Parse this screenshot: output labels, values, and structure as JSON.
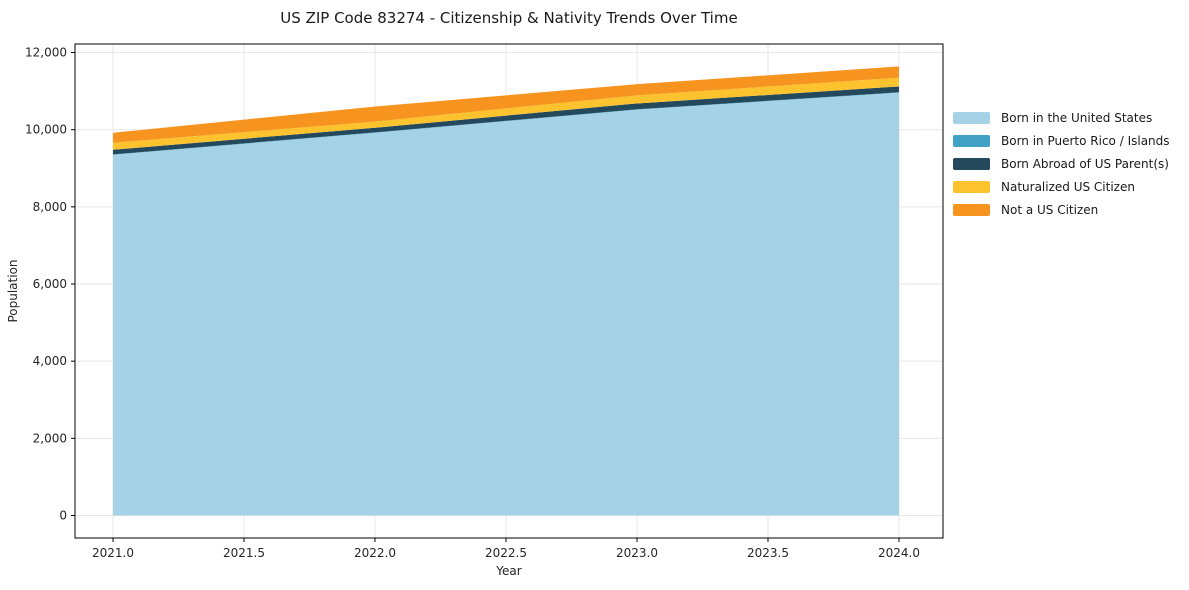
{
  "chart_data": {
    "type": "area",
    "stacked": true,
    "title": "US ZIP Code 83274 - Citizenship & Nativity Trends Over Time",
    "xlabel": "Year",
    "ylabel": "Population",
    "x": [
      2021,
      2022,
      2023,
      2024
    ],
    "series": [
      {
        "name": "Born in the United States",
        "color": "#a5d2e7",
        "values": [
          9350,
          9920,
          10520,
          10960
        ]
      },
      {
        "name": "Born in Puerto Rico / Islands",
        "color": "#41a2c6",
        "values": [
          10,
          10,
          10,
          10
        ]
      },
      {
        "name": "Born Abroad of US Parent(s)",
        "color": "#24495c",
        "values": [
          120,
          120,
          150,
          150
        ]
      },
      {
        "name": "Naturalized US Citizen",
        "color": "#fcc32f",
        "values": [
          180,
          160,
          210,
          230
        ]
      },
      {
        "name": "Not a US Citizen",
        "color": "#f7941f",
        "values": [
          260,
          390,
          290,
          290
        ]
      }
    ],
    "totals": [
      9920,
      10600,
      11180,
      11640
    ],
    "x_ticks": [
      2021.0,
      2021.5,
      2022.0,
      2022.5,
      2023.0,
      2023.5,
      2024.0
    ],
    "x_tick_labels": [
      "2021.0",
      "2021.5",
      "2022.0",
      "2022.5",
      "2023.0",
      "2023.5",
      "2024.0"
    ],
    "y_ticks": [
      0,
      2000,
      4000,
      6000,
      8000,
      10000,
      12000
    ],
    "y_tick_labels": [
      "0",
      "2,000",
      "4,000",
      "6,000",
      "8,000",
      "10,000",
      "12,000"
    ],
    "xlim": [
      2020.855,
      2024.168
    ],
    "ylim": [
      -583,
      12221
    ],
    "grid": true,
    "legend_position": "right"
  },
  "colors": {
    "grid": "#e7e7e7",
    "spine": "#000000",
    "tick_text": "#262626",
    "title_text": "#1a1a1a"
  }
}
